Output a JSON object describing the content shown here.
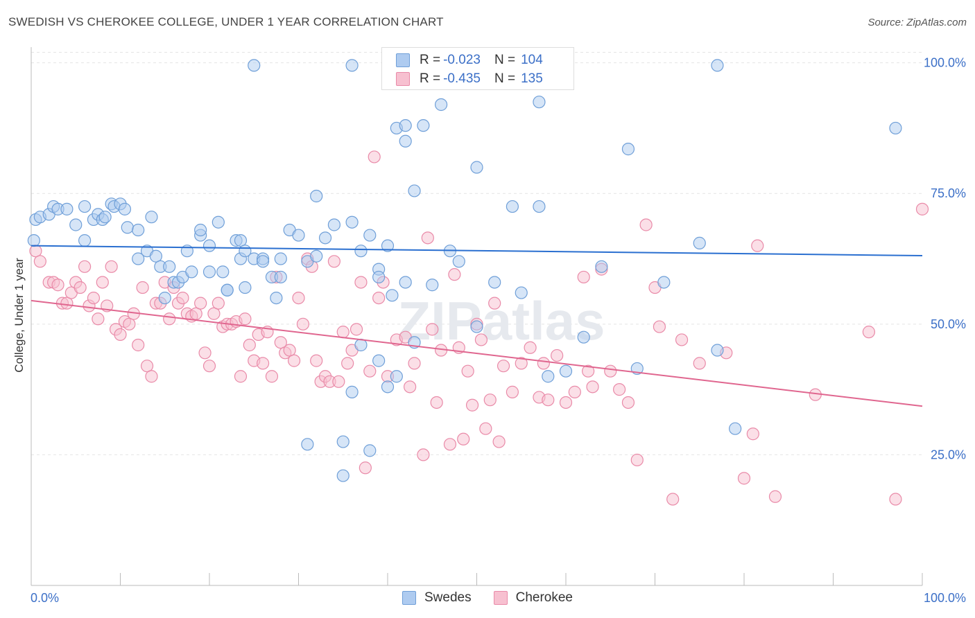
{
  "header": {
    "title": "SWEDISH VS CHEROKEE COLLEGE, UNDER 1 YEAR CORRELATION CHART",
    "source": "Source: ZipAtlas.com"
  },
  "watermark": "ZIPatlas",
  "legend": {
    "rows": [
      {
        "r_label": "R =",
        "r_value": "-0.023",
        "n_label": "N =",
        "n_value": "104"
      },
      {
        "r_label": "R =",
        "r_value": "-0.435",
        "n_label": "N =",
        "n_value": "135"
      }
    ],
    "bottom": [
      "Swedes",
      "Cherokee"
    ]
  },
  "colors": {
    "swedes_fill": "#aecbf0",
    "swedes_stroke": "#6f9fd8",
    "swedes_line": "#2a6fd0",
    "cherokee_fill": "#f7c0d0",
    "cherokee_stroke": "#e98aa8",
    "cherokee_line": "#e0668f",
    "axis_label": "#3b6fc7",
    "grid": "#e4e4e4"
  },
  "chart_data": {
    "type": "scatter",
    "title": "SWEDISH VS CHEROKEE COLLEGE, UNDER 1 YEAR CORRELATION CHART",
    "xlabel": "",
    "ylabel": "College, Under 1 year",
    "xlim": [
      0,
      100
    ],
    "ylim": [
      0,
      103
    ],
    "x_tick_labels": [
      "0.0%",
      "100.0%"
    ],
    "y_tick_labels": [
      "25.0%",
      "50.0%",
      "75.0%",
      "100.0%"
    ],
    "y_ticks": [
      25,
      50,
      75,
      100
    ],
    "grid": "horizontal dashed",
    "legend_position": "top-center",
    "series": [
      {
        "name": "Swedes",
        "r": -0.023,
        "n": 104,
        "trend": {
          "x": [
            0,
            100
          ],
          "y": [
            65.0,
            63.1
          ]
        },
        "points": [
          [
            25,
            99.5
          ],
          [
            36,
            99.5
          ],
          [
            47,
            99.5
          ],
          [
            77,
            99.5
          ],
          [
            46,
            92
          ],
          [
            57,
            92.5
          ],
          [
            41,
            87.5
          ],
          [
            44,
            88
          ],
          [
            42,
            88
          ],
          [
            97,
            87.5
          ],
          [
            42,
            85
          ],
          [
            67,
            83.5
          ],
          [
            50,
            80
          ],
          [
            43,
            75.5
          ],
          [
            32,
            74.5
          ],
          [
            54,
            72.5
          ],
          [
            0.3,
            66
          ],
          [
            0.5,
            70
          ],
          [
            1,
            70.5
          ],
          [
            2,
            71
          ],
          [
            2.5,
            72.5
          ],
          [
            3,
            72
          ],
          [
            4,
            72
          ],
          [
            5,
            69
          ],
          [
            6,
            66
          ],
          [
            6,
            72.5
          ],
          [
            7,
            70
          ],
          [
            7.5,
            71
          ],
          [
            8,
            70
          ],
          [
            8.3,
            70.5
          ],
          [
            9,
            73
          ],
          [
            9.3,
            72.5
          ],
          [
            10,
            73
          ],
          [
            10.5,
            72
          ],
          [
            10.8,
            68.5
          ],
          [
            12,
            68
          ],
          [
            13,
            64
          ],
          [
            12,
            62.5
          ],
          [
            13.5,
            70.5
          ],
          [
            14,
            63
          ],
          [
            14.5,
            61
          ],
          [
            15.5,
            61
          ],
          [
            15,
            55
          ],
          [
            16,
            58
          ],
          [
            16.5,
            58
          ],
          [
            17,
            59
          ],
          [
            17.5,
            64
          ],
          [
            18,
            60
          ],
          [
            19,
            67
          ],
          [
            19,
            68
          ],
          [
            20,
            65
          ],
          [
            20,
            60
          ],
          [
            21,
            69.5
          ],
          [
            21.5,
            60
          ],
          [
            22,
            56.5
          ],
          [
            22,
            56.5
          ],
          [
            23,
            66
          ],
          [
            23.5,
            66
          ],
          [
            23.5,
            62.5
          ],
          [
            24,
            64
          ],
          [
            24,
            57
          ],
          [
            25,
            62.5
          ],
          [
            26,
            62.5
          ],
          [
            26,
            62
          ],
          [
            27,
            59
          ],
          [
            27.5,
            55
          ],
          [
            28,
            62.5
          ],
          [
            28,
            59
          ],
          [
            29,
            68
          ],
          [
            30,
            67
          ],
          [
            31,
            62
          ],
          [
            32,
            63
          ],
          [
            33,
            66.5
          ],
          [
            34,
            69
          ],
          [
            36,
            69.5
          ],
          [
            37,
            64
          ],
          [
            38,
            67
          ],
          [
            39,
            60.5
          ],
          [
            39,
            59
          ],
          [
            40,
            65
          ],
          [
            40.5,
            55.5
          ],
          [
            42,
            58
          ],
          [
            43,
            46.5
          ],
          [
            45,
            57.5
          ],
          [
            47,
            64
          ],
          [
            48,
            62
          ],
          [
            50,
            49.5
          ],
          [
            52,
            58
          ],
          [
            55,
            56
          ],
          [
            57,
            72.5
          ],
          [
            58,
            40
          ],
          [
            60,
            41
          ],
          [
            62,
            47.5
          ],
          [
            64,
            61
          ],
          [
            68,
            41.5
          ],
          [
            71,
            58
          ],
          [
            75,
            65.5
          ],
          [
            77,
            45
          ],
          [
            79,
            30
          ],
          [
            31,
            27
          ],
          [
            35,
            27.5
          ],
          [
            35,
            21
          ],
          [
            36,
            37
          ],
          [
            37,
            46
          ],
          [
            38,
            25.8
          ],
          [
            39,
            43
          ],
          [
            40,
            38
          ],
          [
            41,
            40
          ]
        ]
      },
      {
        "name": "Cherokee",
        "r": -0.435,
        "n": 135,
        "trend": {
          "x": [
            0,
            100
          ],
          "y": [
            54.5,
            34.3
          ]
        },
        "points": [
          [
            0.5,
            64
          ],
          [
            1,
            62
          ],
          [
            2,
            58
          ],
          [
            2.5,
            58
          ],
          [
            3,
            57.5
          ],
          [
            3.5,
            54
          ],
          [
            4,
            54
          ],
          [
            4.5,
            56
          ],
          [
            5,
            58
          ],
          [
            5.5,
            57
          ],
          [
            6,
            61
          ],
          [
            6.5,
            53.5
          ],
          [
            7,
            55
          ],
          [
            7.5,
            51
          ],
          [
            8,
            58
          ],
          [
            8.5,
            53.5
          ],
          [
            9,
            61
          ],
          [
            9.5,
            49
          ],
          [
            10,
            48
          ],
          [
            10.5,
            50.5
          ],
          [
            11,
            50
          ],
          [
            11.5,
            52
          ],
          [
            12,
            46
          ],
          [
            12.5,
            57
          ],
          [
            13,
            42
          ],
          [
            13.5,
            40
          ],
          [
            14,
            54
          ],
          [
            14.5,
            54
          ],
          [
            15,
            58
          ],
          [
            15.5,
            51
          ],
          [
            16,
            57
          ],
          [
            16.5,
            54
          ],
          [
            17,
            55
          ],
          [
            17.5,
            52
          ],
          [
            18,
            51.5
          ],
          [
            18.5,
            52
          ],
          [
            19,
            54
          ],
          [
            19.5,
            44.5
          ],
          [
            20,
            42
          ],
          [
            20.5,
            52
          ],
          [
            21,
            54
          ],
          [
            21.5,
            49.5
          ],
          [
            22,
            50
          ],
          [
            22.5,
            50
          ],
          [
            23,
            50.5
          ],
          [
            23.5,
            40
          ],
          [
            24,
            51
          ],
          [
            24.5,
            46
          ],
          [
            25,
            43
          ],
          [
            25.5,
            48
          ],
          [
            26,
            42.5
          ],
          [
            26.5,
            48.5
          ],
          [
            27,
            40
          ],
          [
            27.5,
            59
          ],
          [
            28,
            46.5
          ],
          [
            28.5,
            44.5
          ],
          [
            29,
            45
          ],
          [
            29.5,
            43
          ],
          [
            30,
            55
          ],
          [
            30.5,
            50
          ],
          [
            31,
            62.5
          ],
          [
            31.5,
            61
          ],
          [
            32,
            43
          ],
          [
            32.5,
            39
          ],
          [
            33,
            40
          ],
          [
            33.5,
            39
          ],
          [
            34,
            62
          ],
          [
            34.5,
            39
          ],
          [
            35,
            48.5
          ],
          [
            35.5,
            42.5
          ],
          [
            36,
            45
          ],
          [
            36.5,
            49
          ],
          [
            37,
            58
          ],
          [
            37.5,
            22.5
          ],
          [
            38,
            41
          ],
          [
            38.5,
            82
          ],
          [
            39,
            55
          ],
          [
            39.5,
            58
          ],
          [
            40,
            40
          ],
          [
            41,
            47
          ],
          [
            42,
            47.5
          ],
          [
            42.5,
            38
          ],
          [
            43,
            42.5
          ],
          [
            44,
            25
          ],
          [
            44.5,
            66.5
          ],
          [
            45,
            49
          ],
          [
            45.5,
            35
          ],
          [
            46,
            45
          ],
          [
            47,
            27
          ],
          [
            47.5,
            59.5
          ],
          [
            48,
            45.5
          ],
          [
            48.5,
            28
          ],
          [
            49,
            41
          ],
          [
            49.5,
            34.5
          ],
          [
            50,
            50
          ],
          [
            50.5,
            47
          ],
          [
            51,
            30
          ],
          [
            51.5,
            35.5
          ],
          [
            52,
            54
          ],
          [
            52.5,
            27.5
          ],
          [
            53,
            42
          ],
          [
            54,
            37
          ],
          [
            55,
            42.5
          ],
          [
            56,
            45.5
          ],
          [
            57,
            36
          ],
          [
            57.5,
            42.5
          ],
          [
            58,
            35.5
          ],
          [
            59,
            44
          ],
          [
            60,
            35
          ],
          [
            61,
            37
          ],
          [
            62,
            59
          ],
          [
            62.5,
            41
          ],
          [
            63,
            38
          ],
          [
            64,
            60.5
          ],
          [
            65,
            41
          ],
          [
            66,
            37.5
          ],
          [
            67,
            35
          ],
          [
            68,
            24
          ],
          [
            69,
            69
          ],
          [
            70,
            57
          ],
          [
            70.5,
            49.5
          ],
          [
            72,
            16.5
          ],
          [
            73,
            47
          ],
          [
            75,
            42.5
          ],
          [
            78,
            44.5
          ],
          [
            80,
            20.5
          ],
          [
            81,
            29
          ],
          [
            81.5,
            65
          ],
          [
            83.5,
            17
          ],
          [
            88,
            36.5
          ],
          [
            94,
            48.5
          ],
          [
            97,
            16.5
          ],
          [
            100,
            72
          ]
        ]
      }
    ]
  }
}
